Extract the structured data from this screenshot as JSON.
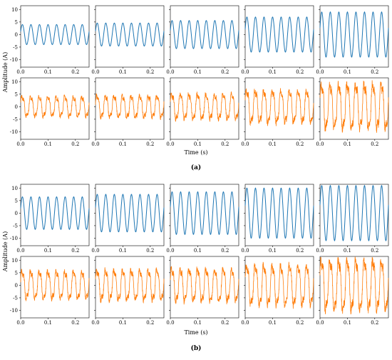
{
  "figure": {
    "shared": {
      "xlabel": "Time (s)",
      "ylabel": "Amplitude (A)",
      "x_ticks": [
        "0.0",
        "0.1",
        "0.2"
      ],
      "y_ticks": [
        "10",
        "5",
        "0",
        "-5",
        "-10"
      ],
      "xlim": [
        0,
        0.25
      ],
      "ylim": [
        -13,
        11.5
      ],
      "colors": {
        "clean": "#1f77b4",
        "noisy": "#ff7f0e"
      },
      "freq_hz": 32
    },
    "panel_labels": {
      "a": "(a)",
      "b": "(b)"
    }
  },
  "chart_data": [
    {
      "type": "line",
      "panel": "(a)",
      "xlabel": "Time (s)",
      "ylabel": "Amplitude (A)",
      "xlim": [
        0,
        0.25
      ],
      "ylim": [
        -13,
        11.5
      ],
      "x_ticks": [
        0.0,
        0.1,
        0.2
      ],
      "y_ticks": [
        10,
        5,
        0,
        -5,
        -10
      ],
      "grid": false,
      "series": [
        {
          "row": "top",
          "color": "#1f77b4",
          "amplitudes": [
            4,
            4.6,
            5.6,
            7,
            9
          ]
        },
        {
          "row": "bottom",
          "color": "#ff7f0e",
          "amplitudes": [
            4,
            4.4,
            5,
            6.5,
            9
          ],
          "noise": [
            0.8,
            0.9,
            1.0,
            1.2,
            1.6
          ]
        }
      ]
    },
    {
      "type": "line",
      "panel": "(b)",
      "xlabel": "Time (s)",
      "ylabel": "Amplitude (A)",
      "xlim": [
        0,
        0.25
      ],
      "ylim": [
        -13,
        11.5
      ],
      "x_ticks": [
        0.0,
        0.1,
        0.2
      ],
      "y_ticks": [
        10,
        5,
        0,
        -5,
        -10
      ],
      "grid": false,
      "series": [
        {
          "row": "top",
          "color": "#1f77b4",
          "amplitudes": [
            6.5,
            7.5,
            8.5,
            10,
            11
          ]
        },
        {
          "row": "bottom",
          "color": "#ff7f0e",
          "amplitudes": [
            5.5,
            6,
            6.5,
            8,
            10
          ],
          "noise": [
            1.0,
            1.1,
            1.2,
            1.4,
            1.8
          ]
        }
      ]
    }
  ]
}
